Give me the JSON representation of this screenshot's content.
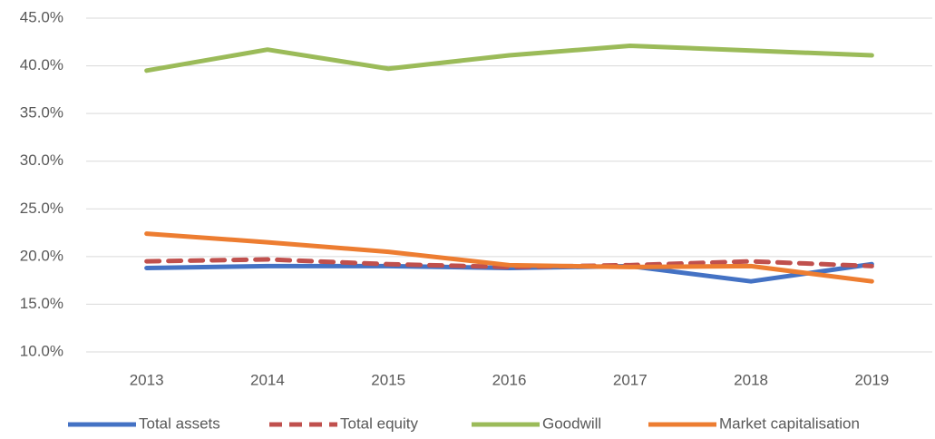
{
  "chart_data": {
    "type": "line",
    "categories": [
      "2013",
      "2014",
      "2015",
      "2016",
      "2017",
      "2018",
      "2019"
    ],
    "series": [
      {
        "name": "Total assets",
        "color": "#4472c4",
        "dash": false,
        "values": [
          18.8,
          19.0,
          19.0,
          18.8,
          19.0,
          17.4,
          19.2
        ]
      },
      {
        "name": "Total equity",
        "color": "#c0504d",
        "dash": true,
        "values": [
          19.5,
          19.7,
          19.2,
          18.9,
          19.1,
          19.5,
          19.0
        ]
      },
      {
        "name": "Goodwill",
        "color": "#9bbb59",
        "dash": false,
        "values": [
          39.5,
          41.7,
          39.7,
          41.1,
          42.1,
          41.6,
          41.1
        ]
      },
      {
        "name": "Market capitalisation",
        "color": "#ed7d31",
        "dash": false,
        "values": [
          22.4,
          21.5,
          20.5,
          19.1,
          18.9,
          19.0,
          17.4
        ]
      }
    ],
    "ylim": [
      10,
      45
    ],
    "yticks": [
      {
        "value": 10,
        "label": "10.0%"
      },
      {
        "value": 15,
        "label": "15.0%"
      },
      {
        "value": 20,
        "label": "20.0%"
      },
      {
        "value": 25,
        "label": "25.0%"
      },
      {
        "value": 30,
        "label": "30.0%"
      },
      {
        "value": 35,
        "label": "35.0%"
      },
      {
        "value": 40,
        "label": "40.0%"
      },
      {
        "value": 45,
        "label": "45.0%"
      }
    ],
    "grid": true,
    "legend": "bottom"
  }
}
